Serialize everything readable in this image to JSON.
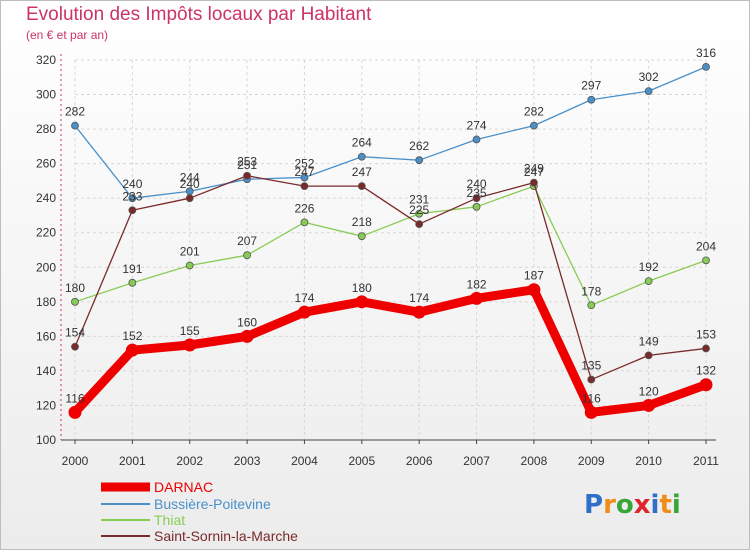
{
  "chart_data": {
    "type": "line",
    "title": "Evolution des Impôts locaux par Habitant",
    "subtitle": "(en € et par an)",
    "x": [
      "2000",
      "2001",
      "2002",
      "2003",
      "2004",
      "2005",
      "2006",
      "2007",
      "2008",
      "2009",
      "2010",
      "2011"
    ],
    "yticks": [
      100,
      120,
      140,
      160,
      180,
      200,
      220,
      240,
      260,
      280,
      300,
      320
    ],
    "ylim": [
      100,
      320
    ],
    "grid": true,
    "legend_position": "bottom-left",
    "series": [
      {
        "name": "Bussière-Poitevine",
        "color": "#4a90c8",
        "values": [
          282,
          240,
          244,
          251,
          252,
          264,
          262,
          274,
          282,
          297,
          302,
          316
        ],
        "labels": [
          "282",
          "240",
          "244",
          "251",
          "252",
          "264",
          "262",
          "274",
          "282",
          "297",
          "302",
          "316"
        ]
      },
      {
        "name": "Thiat",
        "color": "#88cc55",
        "values": [
          180,
          191,
          201,
          207,
          226,
          218,
          231,
          235,
          247,
          178,
          192,
          204
        ],
        "labels": [
          "180",
          "191",
          "201",
          "207",
          "226",
          "218",
          "231",
          "235",
          "247",
          "178",
          "192",
          "204"
        ]
      },
      {
        "name": "Saint-Sornin-la-Marche",
        "color": "#7a2a2a",
        "values": [
          154,
          233,
          240,
          253,
          247,
          247,
          225,
          240,
          249,
          135,
          149,
          153
        ],
        "labels": [
          "154",
          "233",
          "240",
          "253",
          "247",
          "247",
          "225",
          "240",
          "249",
          "135",
          "149",
          "153"
        ]
      },
      {
        "name": "DARNAC",
        "color": "#ee0000",
        "values": [
          116,
          152,
          155,
          160,
          174,
          180,
          174,
          182,
          187,
          116,
          120,
          132
        ],
        "labels": [
          "116",
          "152",
          "155",
          "160",
          "174",
          "180",
          "174",
          "182",
          "187",
          "116",
          "120",
          "132"
        ]
      }
    ],
    "legend_order": [
      "DARNAC",
      "Bussière-Poitevine",
      "Thiat",
      "Saint-Sornin-la-Marche"
    ]
  },
  "logo": {
    "letters": [
      "P",
      "r",
      "o",
      "x",
      "i",
      "t",
      "i"
    ],
    "colors": [
      "#2f6fc7",
      "#f08c1a",
      "#3aa63a",
      "#e0252a",
      "#2f6fc7",
      "#f08c1a",
      "#3aa63a"
    ]
  }
}
